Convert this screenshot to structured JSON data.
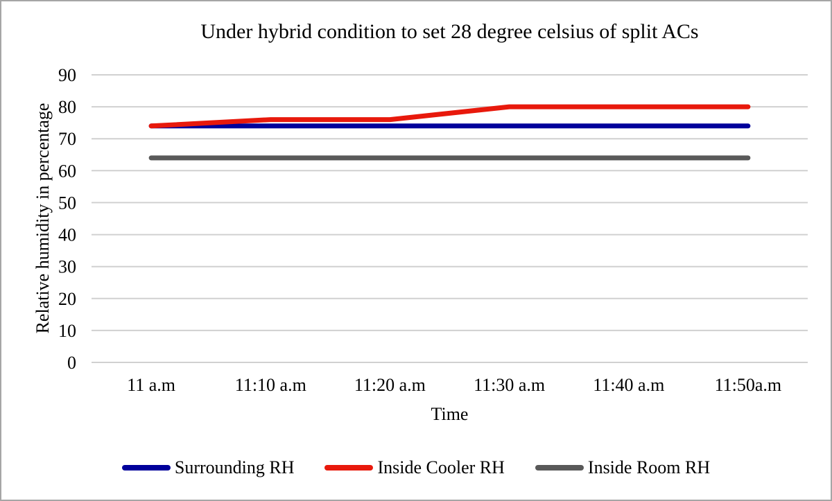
{
  "window": {
    "background_color": "#ffffff",
    "border_color": "#a6a6a6"
  },
  "chart_data": {
    "type": "line",
    "title": "Under hybrid condition to set 28 degree celsius of split ACs",
    "xlabel": "Time",
    "ylabel": "Relative humidity in percentage",
    "categories": [
      "11 a.m",
      "11:10 a.m",
      "11:20 a.m",
      "11:30 a.m",
      "11:40 a.m",
      "11:50a.m"
    ],
    "series": [
      {
        "name": "Surrounding RH",
        "color": "#00009b",
        "values": [
          74,
          74,
          74,
          74,
          74,
          74
        ]
      },
      {
        "name": "Inside Cooler RH",
        "color": "#e8190c",
        "values": [
          74,
          76,
          76,
          80,
          80,
          80
        ]
      },
      {
        "name": "Inside Room RH",
        "color": "#595959",
        "values": [
          64,
          64,
          64,
          64,
          64,
          64
        ]
      }
    ],
    "ylim": [
      0,
      90
    ],
    "y_ticks": [
      0,
      10,
      20,
      30,
      40,
      50,
      60,
      70,
      80,
      90
    ],
    "grid": "horizontal",
    "gridline_color": "#d0d0d0",
    "legend_position": "bottom"
  }
}
